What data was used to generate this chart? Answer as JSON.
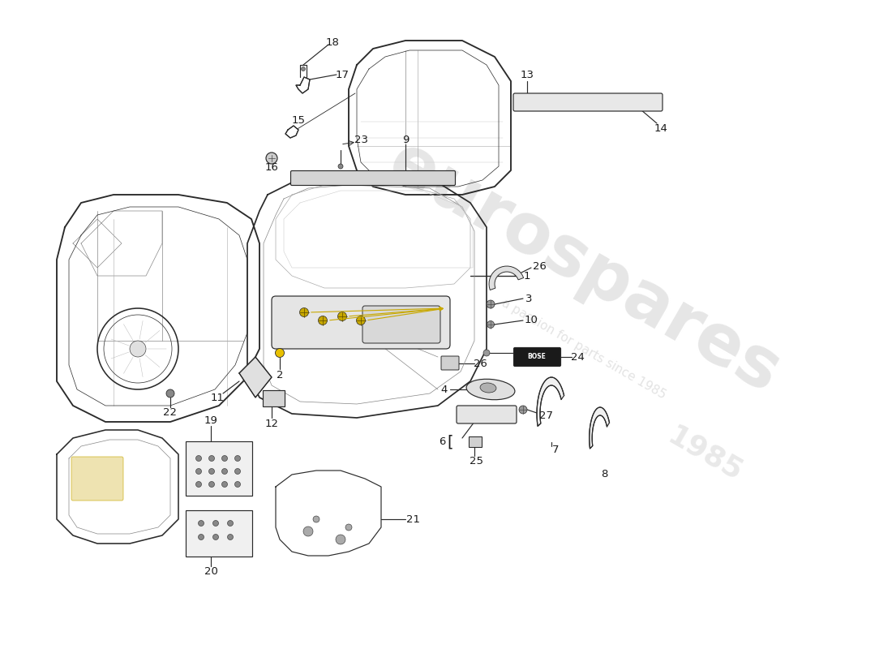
{
  "bg_color": "#ffffff",
  "lc": "#2a2a2a",
  "lw": 0.85,
  "label_fs": 9.5,
  "wm1": "eurospares",
  "wm2": "a passion for parts since 1985",
  "wm3": "1985"
}
